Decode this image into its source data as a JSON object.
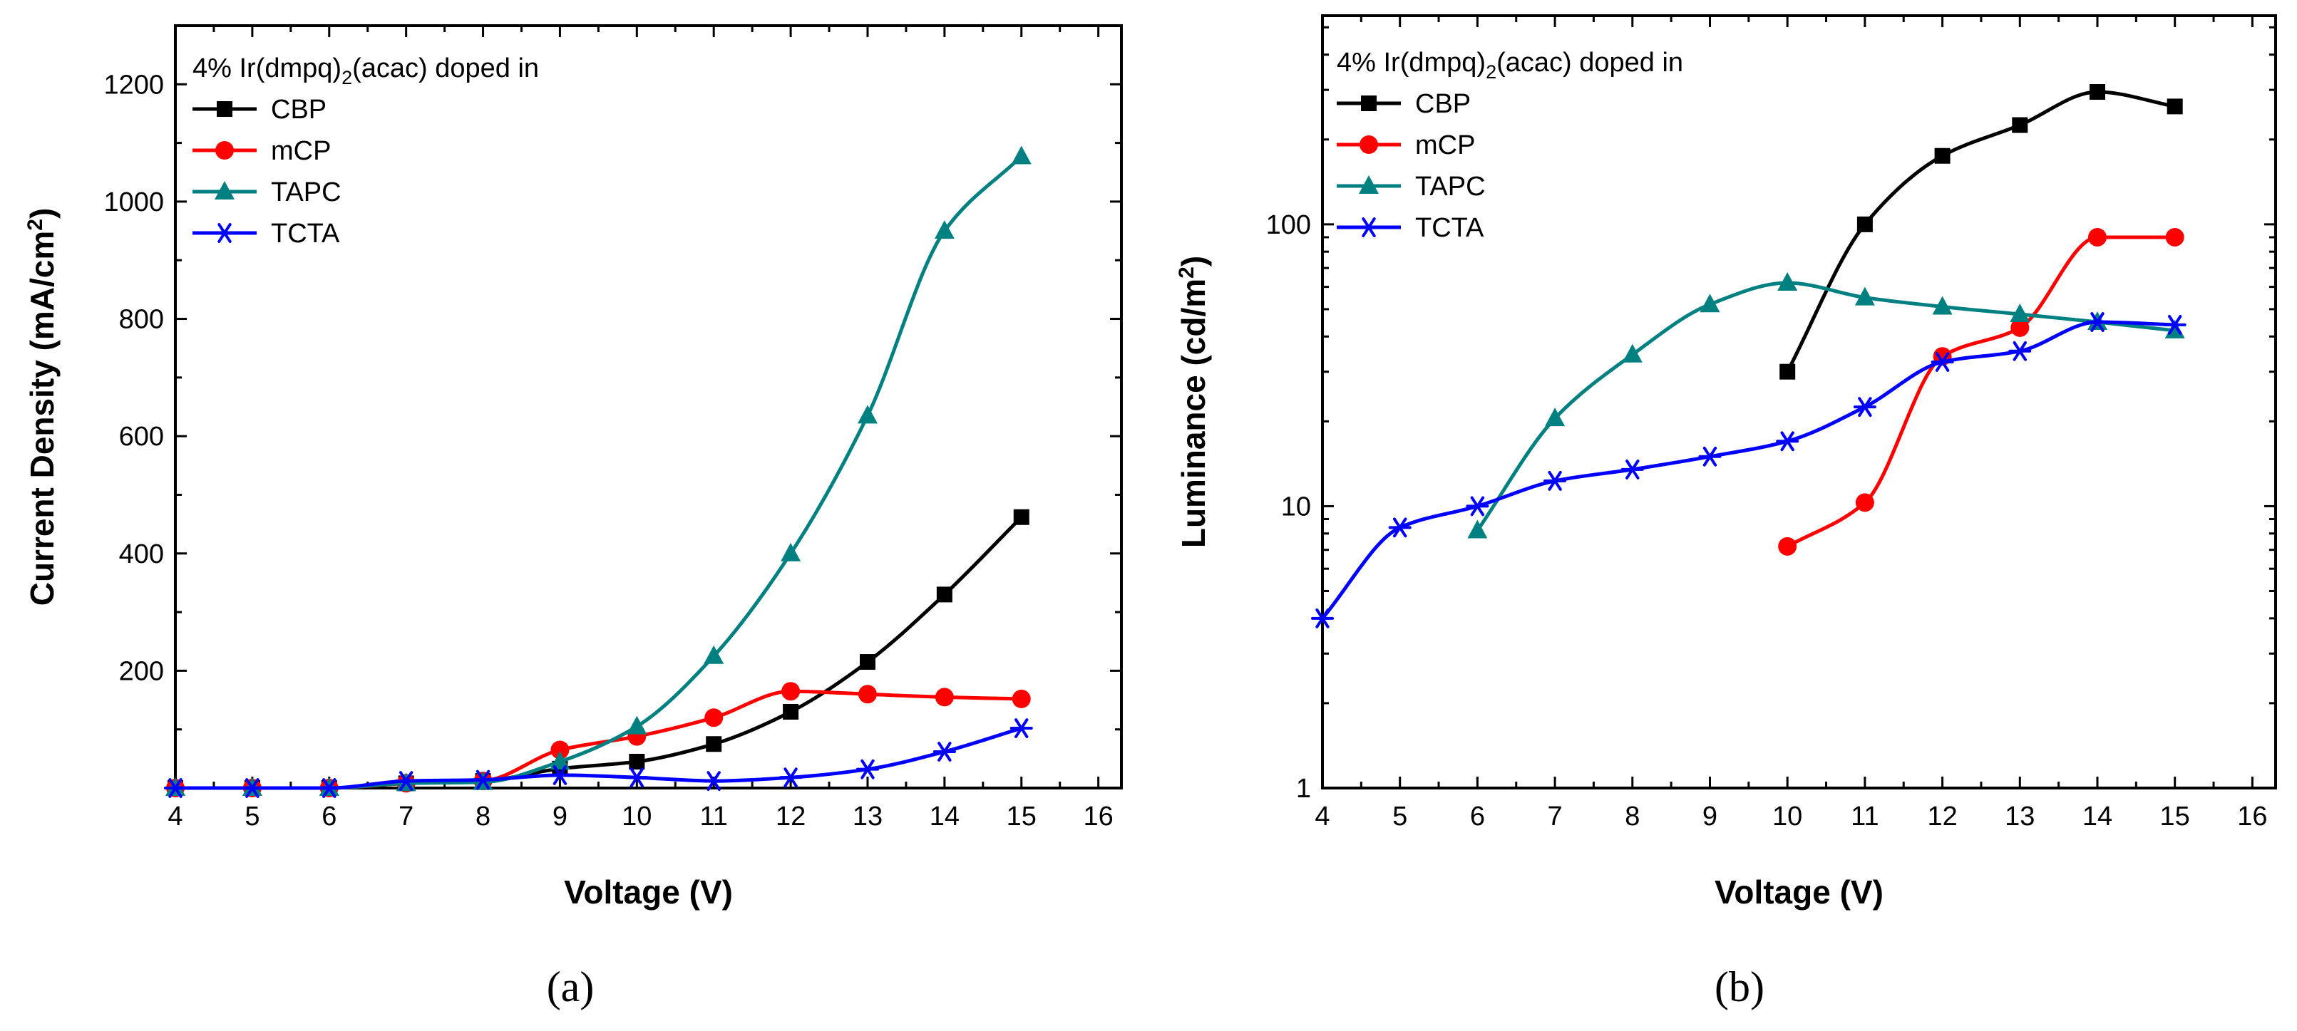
{
  "chart_data": [
    {
      "type": "line",
      "panel_label": "(a)",
      "title": "",
      "legend_title_main": "4% Ir(dmpq)",
      "legend_title_sub": "2",
      "legend_title_tail": "(acac) doped in",
      "xlabel": "Voltage (V)",
      "ylabel_main": "Current Density (mA/cm",
      "ylabel_sup": "2",
      "ylabel_tail": ")",
      "yscale": "linear",
      "xlim": [
        4,
        16.3
      ],
      "ylim": [
        0,
        1300
      ],
      "xticks": [
        4,
        5,
        6,
        7,
        8,
        9,
        10,
        11,
        12,
        13,
        14,
        15,
        16
      ],
      "yticks": [
        200,
        400,
        600,
        800,
        1000,
        1200
      ],
      "legend_position": "top-left",
      "series": [
        {
          "name": "CBP",
          "color": "#000000",
          "marker": "square",
          "x": [
            4,
            5,
            6,
            7,
            8,
            9,
            10,
            11,
            12,
            13,
            14,
            15
          ],
          "y": [
            0,
            0,
            0,
            8,
            12,
            33,
            45,
            75,
            130,
            215,
            330,
            462
          ]
        },
        {
          "name": "mCP",
          "color": "#ff0000",
          "marker": "circle",
          "x": [
            4,
            5,
            6,
            7,
            8,
            9,
            10,
            11,
            12,
            13,
            14,
            15
          ],
          "y": [
            0,
            0,
            0,
            8,
            12,
            65,
            88,
            120,
            165,
            160,
            155,
            152
          ]
        },
        {
          "name": "TAPC",
          "color": "#008080",
          "marker": "triangle",
          "x": [
            4,
            5,
            6,
            7,
            8,
            9,
            10,
            11,
            12,
            13,
            14,
            15
          ],
          "y": [
            0,
            0,
            0,
            8,
            10,
            45,
            105,
            225,
            400,
            635,
            950,
            1077
          ]
        },
        {
          "name": "TCTA",
          "color": "#0000ff",
          "marker": "asterisk",
          "x": [
            4,
            5,
            6,
            7,
            8,
            9,
            10,
            11,
            12,
            13,
            14,
            15
          ],
          "y": [
            0,
            0,
            0,
            12,
            14,
            22,
            18,
            12,
            18,
            32,
            62,
            102
          ]
        }
      ]
    },
    {
      "type": "line",
      "panel_label": "(b)",
      "title": "",
      "legend_title_main": "4% Ir(dmpq)",
      "legend_title_sub": "2",
      "legend_title_tail": "(acac) doped in",
      "xlabel": "Voltage (V)",
      "ylabel_main": "Luminance (cd/m",
      "ylabel_sup": "2",
      "ylabel_tail": ")",
      "yscale": "log",
      "xlim": [
        4,
        16.3
      ],
      "ylim": [
        1,
        550
      ],
      "xticks": [
        4,
        5,
        6,
        7,
        8,
        9,
        10,
        11,
        12,
        13,
        14,
        15,
        16
      ],
      "yticks": [
        1,
        10,
        100
      ],
      "legend_position": "top-left",
      "series": [
        {
          "name": "CBP",
          "color": "#000000",
          "marker": "square",
          "x": [
            10,
            11,
            12,
            13,
            14,
            15
          ],
          "y": [
            30,
            100,
            175,
            225,
            295,
            262
          ]
        },
        {
          "name": "mCP",
          "color": "#ff0000",
          "marker": "circle",
          "x": [
            10,
            11,
            12,
            13,
            14,
            15
          ],
          "y": [
            7.2,
            10.3,
            34,
            43,
            90,
            90
          ]
        },
        {
          "name": "TAPC",
          "color": "#008080",
          "marker": "triangle",
          "x": [
            6,
            7,
            8,
            9,
            10,
            11,
            12,
            13,
            14,
            15
          ],
          "y": [
            8.2,
            20.5,
            34.5,
            52,
            62,
            55,
            51,
            48,
            45,
            42
          ]
        },
        {
          "name": "TCTA",
          "color": "#0000ff",
          "marker": "asterisk",
          "x": [
            4,
            5,
            6,
            7,
            8,
            9,
            10,
            11,
            12,
            13,
            14,
            15
          ],
          "y": [
            4,
            8.4,
            10,
            12.3,
            13.5,
            15,
            17,
            22.5,
            32.5,
            35.5,
            45,
            44
          ]
        }
      ]
    }
  ]
}
